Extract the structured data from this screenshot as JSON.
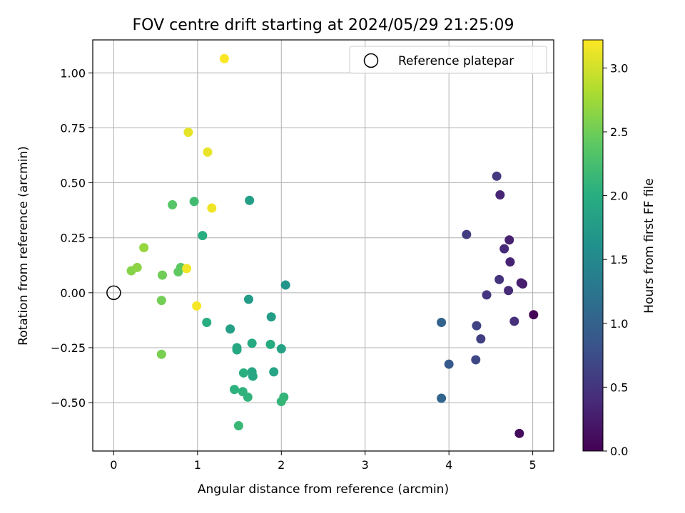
{
  "chart_data": {
    "type": "scatter",
    "title": "FOV centre drift starting at 2024/05/29 21:25:09",
    "xlabel": "Angular distance from reference (arcmin)",
    "ylabel": "Rotation from reference (arcmin)",
    "xlim": [
      -0.25,
      5.25
    ],
    "ylim": [
      -0.72,
      1.15
    ],
    "x_ticks": [
      0,
      1,
      2,
      3,
      4,
      5
    ],
    "x_tick_labels": [
      "0",
      "1",
      "2",
      "3",
      "4",
      "5"
    ],
    "y_ticks": [
      -0.5,
      -0.25,
      0.0,
      0.25,
      0.5,
      0.75,
      1.0
    ],
    "y_tick_labels": [
      "−0.50",
      "−0.25",
      "0.00",
      "0.25",
      "0.50",
      "0.75",
      "1.00"
    ],
    "grid": true,
    "legend": {
      "position": "top-right",
      "entries": [
        "Reference platepar"
      ]
    },
    "reference_point": {
      "x": 0,
      "y": 0
    },
    "colorbar": {
      "label": "Hours from first FF file",
      "range": [
        0.0,
        3.22
      ],
      "ticks": [
        0.0,
        0.5,
        1.0,
        1.5,
        2.0,
        2.5,
        3.0
      ],
      "tick_labels": [
        "0.0",
        "0.5",
        "1.0",
        "1.5",
        "2.0",
        "2.5",
        "3.0"
      ],
      "colormap": "viridis"
    },
    "points": [
      {
        "x": 5.01,
        "y": -0.1,
        "h": 0.02
      },
      {
        "x": 4.84,
        "y": -0.64,
        "h": 0.1
      },
      {
        "x": 4.88,
        "y": 0.04,
        "h": 0.25
      },
      {
        "x": 4.86,
        "y": 0.045,
        "h": 0.28
      },
      {
        "x": 4.72,
        "y": 0.24,
        "h": 0.3
      },
      {
        "x": 4.73,
        "y": 0.14,
        "h": 0.32
      },
      {
        "x": 4.61,
        "y": 0.445,
        "h": 0.35
      },
      {
        "x": 4.66,
        "y": 0.2,
        "h": 0.38
      },
      {
        "x": 4.71,
        "y": 0.01,
        "h": 0.4
      },
      {
        "x": 4.78,
        "y": -0.13,
        "h": 0.45
      },
      {
        "x": 4.6,
        "y": 0.06,
        "h": 0.48
      },
      {
        "x": 4.45,
        "y": -0.01,
        "h": 0.5
      },
      {
        "x": 4.57,
        "y": 0.53,
        "h": 0.55
      },
      {
        "x": 4.21,
        "y": 0.265,
        "h": 0.58
      },
      {
        "x": 4.38,
        "y": -0.21,
        "h": 0.6
      },
      {
        "x": 4.33,
        "y": -0.15,
        "h": 0.65
      },
      {
        "x": 4.32,
        "y": -0.305,
        "h": 0.7
      },
      {
        "x": 4.0,
        "y": -0.325,
        "h": 0.9
      },
      {
        "x": 3.91,
        "y": -0.135,
        "h": 1.02
      },
      {
        "x": 3.91,
        "y": -0.48,
        "h": 1.05
      },
      {
        "x": 2.05,
        "y": 0.035,
        "h": 1.65
      },
      {
        "x": 1.61,
        "y": -0.03,
        "h": 1.75
      },
      {
        "x": 1.88,
        "y": -0.11,
        "h": 1.78
      },
      {
        "x": 1.62,
        "y": 0.42,
        "h": 1.8
      },
      {
        "x": 1.39,
        "y": -0.165,
        "h": 1.82
      },
      {
        "x": 2.0,
        "y": -0.255,
        "h": 1.85
      },
      {
        "x": 1.91,
        "y": -0.36,
        "h": 1.87
      },
      {
        "x": 1.65,
        "y": -0.36,
        "h": 1.9
      },
      {
        "x": 1.66,
        "y": -0.38,
        "h": 1.9
      },
      {
        "x": 1.47,
        "y": -0.25,
        "h": 1.92
      },
      {
        "x": 1.47,
        "y": -0.26,
        "h": 1.93
      },
      {
        "x": 1.65,
        "y": -0.23,
        "h": 1.95
      },
      {
        "x": 1.87,
        "y": -0.235,
        "h": 1.97
      },
      {
        "x": 1.11,
        "y": -0.135,
        "h": 2.0
      },
      {
        "x": 1.06,
        "y": 0.26,
        "h": 2.0
      },
      {
        "x": 1.55,
        "y": -0.365,
        "h": 2.02
      },
      {
        "x": 1.44,
        "y": -0.44,
        "h": 2.05
      },
      {
        "x": 1.54,
        "y": -0.45,
        "h": 2.07
      },
      {
        "x": 1.6,
        "y": -0.475,
        "h": 2.08
      },
      {
        "x": 2.03,
        "y": -0.475,
        "h": 2.1
      },
      {
        "x": 2.0,
        "y": -0.495,
        "h": 2.12
      },
      {
        "x": 1.49,
        "y": -0.605,
        "h": 2.15
      },
      {
        "x": 0.96,
        "y": 0.415,
        "h": 2.2
      },
      {
        "x": 0.7,
        "y": 0.4,
        "h": 2.35
      },
      {
        "x": 0.8,
        "y": 0.115,
        "h": 2.4
      },
      {
        "x": 0.77,
        "y": 0.095,
        "h": 2.42
      },
      {
        "x": 0.58,
        "y": 0.08,
        "h": 2.5
      },
      {
        "x": 0.57,
        "y": -0.035,
        "h": 2.52
      },
      {
        "x": 0.57,
        "y": -0.28,
        "h": 2.55
      },
      {
        "x": 0.21,
        "y": 0.1,
        "h": 2.62
      },
      {
        "x": 0.28,
        "y": 0.115,
        "h": 2.65
      },
      {
        "x": 0.36,
        "y": 0.205,
        "h": 2.7
      },
      {
        "x": 0.89,
        "y": 0.73,
        "h": 3.1
      },
      {
        "x": 1.12,
        "y": 0.64,
        "h": 3.12
      },
      {
        "x": 1.17,
        "y": 0.385,
        "h": 3.15
      },
      {
        "x": 0.87,
        "y": 0.11,
        "h": 3.16
      },
      {
        "x": 0.99,
        "y": -0.06,
        "h": 3.18
      },
      {
        "x": 1.32,
        "y": 1.065,
        "h": 3.2
      }
    ]
  }
}
